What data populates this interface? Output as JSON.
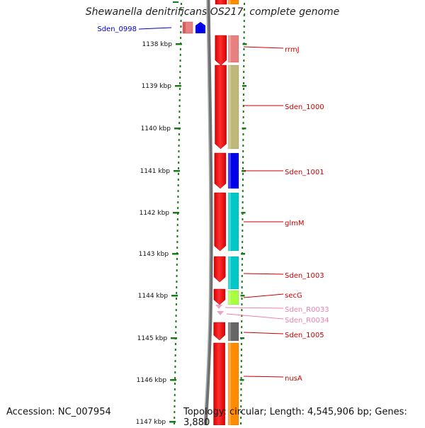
{
  "title": "Shewanella denitrificans OS217, complete genome",
  "accession": "Accession: NC_007954",
  "topology": "Topology: circular; Length: 4,545,906 bp; Genes: 3,880",
  "ruler_unit": "kbp",
  "ticks": [
    1138,
    1139,
    1140,
    1141,
    1142,
    1143,
    1144,
    1145,
    1146,
    1147
  ],
  "left_label": {
    "name": "Sden_0998",
    "color": "#0000cc"
  },
  "genes": [
    {
      "name": "rrmJ",
      "color": "#e88080",
      "label_color": "#cc0000"
    },
    {
      "name": "Sden_1000",
      "color": "#bfb87a",
      "label_color": "#cc0000"
    },
    {
      "name": "Sden_1001",
      "color": "#0000e8",
      "label_color": "#cc0000"
    },
    {
      "name": "glmM",
      "color": "#00c8c8",
      "label_color": "#cc0000"
    },
    {
      "name": "Sden_1003",
      "color": "#00c8c8",
      "label_color": "#cc0000"
    },
    {
      "name": "secG",
      "color": "#a8ff40",
      "label_color": "#cc0000"
    },
    {
      "name": "Sden_R0033",
      "color": "#f0a0c8",
      "label_color": "#f080b0"
    },
    {
      "name": "Sden_R0034",
      "color": "#f0a0c8",
      "label_color": "#f080b0"
    },
    {
      "name": "Sden_1005",
      "color": "#666666",
      "label_color": "#cc0000"
    },
    {
      "name": "nusA",
      "color": "#ff8c00",
      "label_color": "#cc0000"
    }
  ]
}
